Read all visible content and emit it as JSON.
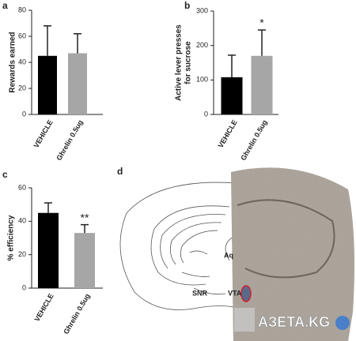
{
  "chart_data": [
    {
      "type": "bar",
      "panel": "a",
      "ylabel": [
        "Rewards earned"
      ],
      "categories": [
        "VEHICLE",
        "Ghrelin 0.5ug"
      ],
      "values": [
        45,
        47
      ],
      "errors": [
        23,
        15
      ],
      "colors": [
        "#000000",
        "#a6a6a6"
      ],
      "significance": [
        null,
        null
      ],
      "ylim": [
        0,
        80
      ],
      "yticks": [
        0,
        20,
        40,
        60,
        80
      ]
    },
    {
      "type": "bar",
      "panel": "b",
      "ylabel": [
        "Active lever presses",
        "for sucrose"
      ],
      "categories": [
        "VEHICLE",
        "Ghrelin 0.5ug"
      ],
      "values": [
        108,
        170
      ],
      "errors": [
        64,
        75
      ],
      "colors": [
        "#000000",
        "#a6a6a6"
      ],
      "significance": [
        null,
        "*"
      ],
      "ylim": [
        0,
        300
      ],
      "yticks": [
        0,
        100,
        200,
        300
      ]
    },
    {
      "type": "bar",
      "panel": "c",
      "ylabel": [
        "% efficiency"
      ],
      "categories": [
        "VEHICLE",
        "Ghrelin 0.5ug"
      ],
      "values": [
        45,
        33
      ],
      "errors": [
        6,
        5
      ],
      "colors": [
        "#000000",
        "#a6a6a6"
      ],
      "significance": [
        null,
        "**"
      ],
      "ylim": [
        0,
        60
      ],
      "yticks": [
        0,
        20,
        40,
        60
      ]
    }
  ],
  "image_panel": {
    "panel": "d",
    "labels": [
      "Aq",
      "SNR",
      "VTA"
    ],
    "watermark": "АЗЕТА.KG"
  }
}
